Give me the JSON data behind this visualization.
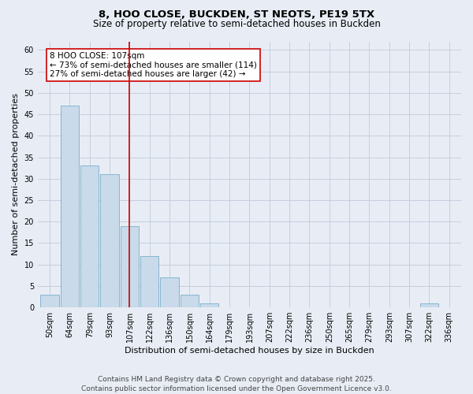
{
  "title_line1": "8, HOO CLOSE, BUCKDEN, ST NEOTS, PE19 5TX",
  "title_line2": "Size of property relative to semi-detached houses in Buckden",
  "xlabel": "Distribution of semi-detached houses by size in Buckden",
  "ylabel": "Number of semi-detached properties",
  "bin_labels": [
    "50sqm",
    "64sqm",
    "79sqm",
    "93sqm",
    "107sqm",
    "122sqm",
    "136sqm",
    "150sqm",
    "164sqm",
    "179sqm",
    "193sqm",
    "207sqm",
    "222sqm",
    "236sqm",
    "250sqm",
    "265sqm",
    "279sqm",
    "293sqm",
    "307sqm",
    "322sqm",
    "336sqm"
  ],
  "values": [
    3,
    47,
    33,
    31,
    19,
    12,
    7,
    3,
    1,
    0,
    0,
    0,
    0,
    0,
    0,
    0,
    0,
    0,
    0,
    1,
    0
  ],
  "bar_color": "#c9daea",
  "bar_edge_color": "#7aafc8",
  "highlight_index": 4,
  "highlight_line_color": "#cc0000",
  "annotation_text": "8 HOO CLOSE: 107sqm\n← 73% of semi-detached houses are smaller (114)\n27% of semi-detached houses are larger (42) →",
  "annotation_box_color": "#ffffff",
  "annotation_box_edge_color": "#cc0000",
  "ylim": [
    0,
    62
  ],
  "yticks": [
    0,
    5,
    10,
    15,
    20,
    25,
    30,
    35,
    40,
    45,
    50,
    55,
    60
  ],
  "grid_color": "#c5cfe0",
  "bg_color": "#e8edf5",
  "footer_text": "Contains HM Land Registry data © Crown copyright and database right 2025.\nContains public sector information licensed under the Open Government Licence v3.0.",
  "title_fontsize": 9.5,
  "subtitle_fontsize": 8.5,
  "axis_label_fontsize": 8,
  "tick_fontsize": 7,
  "annotation_fontsize": 7.5,
  "footer_fontsize": 6.5
}
